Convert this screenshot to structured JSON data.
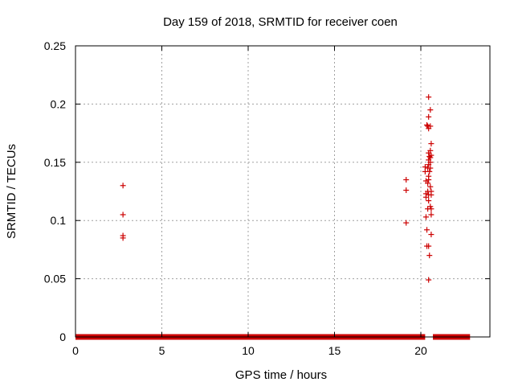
{
  "chart_data": {
    "type": "scatter",
    "title": "Day 159 of 2018, SRMTID for receiver coen",
    "xlabel": "GPS time / hours",
    "ylabel": "SRMTID / TECUs",
    "xlim": [
      0,
      24
    ],
    "ylim": [
      0,
      0.25
    ],
    "xticks": [
      0,
      5,
      10,
      15,
      20
    ],
    "xtick_labels": [
      "0",
      "5",
      "10",
      "15",
      "20"
    ],
    "yticks": [
      0,
      0.05,
      0.1,
      0.15,
      0.2,
      0.25
    ],
    "ytick_labels": [
      "0",
      "0.05",
      "0.1",
      "0.15",
      "0.2",
      "0.25"
    ],
    "grid": true,
    "legend": "none",
    "marker": "plus",
    "color": "#cc0000",
    "series": [
      {
        "points": [
          [
            2.75,
            0.13
          ],
          [
            2.75,
            0.105
          ],
          [
            2.75,
            0.087
          ],
          [
            2.75,
            0.085
          ],
          [
            19.15,
            0.135
          ],
          [
            19.15,
            0.126
          ],
          [
            19.15,
            0.098
          ],
          [
            20.25,
            0.146
          ],
          [
            20.25,
            0.142
          ],
          [
            20.3,
            0.134
          ],
          [
            20.3,
            0.123
          ],
          [
            20.3,
            0.12
          ],
          [
            20.3,
            0.103
          ],
          [
            20.35,
            0.092
          ],
          [
            20.35,
            0.078
          ],
          [
            20.35,
            0.182
          ],
          [
            20.4,
            0.181
          ],
          [
            20.4,
            0.145
          ],
          [
            20.4,
            0.132
          ],
          [
            20.4,
            0.125
          ],
          [
            20.4,
            0.11
          ],
          [
            20.45,
            0.206
          ],
          [
            20.45,
            0.189
          ],
          [
            20.45,
            0.179
          ],
          [
            20.45,
            0.158
          ],
          [
            20.45,
            0.152
          ],
          [
            20.45,
            0.148
          ],
          [
            20.45,
            0.138
          ],
          [
            20.45,
            0.135
          ],
          [
            20.45,
            0.122
          ],
          [
            20.45,
            0.117
          ],
          [
            20.45,
            0.078
          ],
          [
            20.45,
            0.049
          ],
          [
            20.5,
            0.155
          ],
          [
            20.5,
            0.142
          ],
          [
            20.5,
            0.07
          ],
          [
            20.55,
            0.195
          ],
          [
            20.55,
            0.181
          ],
          [
            20.55,
            0.16
          ],
          [
            20.55,
            0.154
          ],
          [
            20.55,
            0.15
          ],
          [
            20.55,
            0.145
          ],
          [
            20.55,
            0.129
          ],
          [
            20.55,
            0.112
          ],
          [
            20.6,
            0.166
          ],
          [
            20.6,
            0.156
          ],
          [
            20.6,
            0.125
          ],
          [
            20.6,
            0.122
          ],
          [
            20.6,
            0.11
          ],
          [
            20.6,
            0.105
          ],
          [
            20.6,
            0.088
          ]
        ],
        "baseline_segments": [
          [
            0,
            20.25
          ],
          [
            20.7,
            22.85
          ]
        ],
        "baseline_value": 0
      }
    ]
  }
}
